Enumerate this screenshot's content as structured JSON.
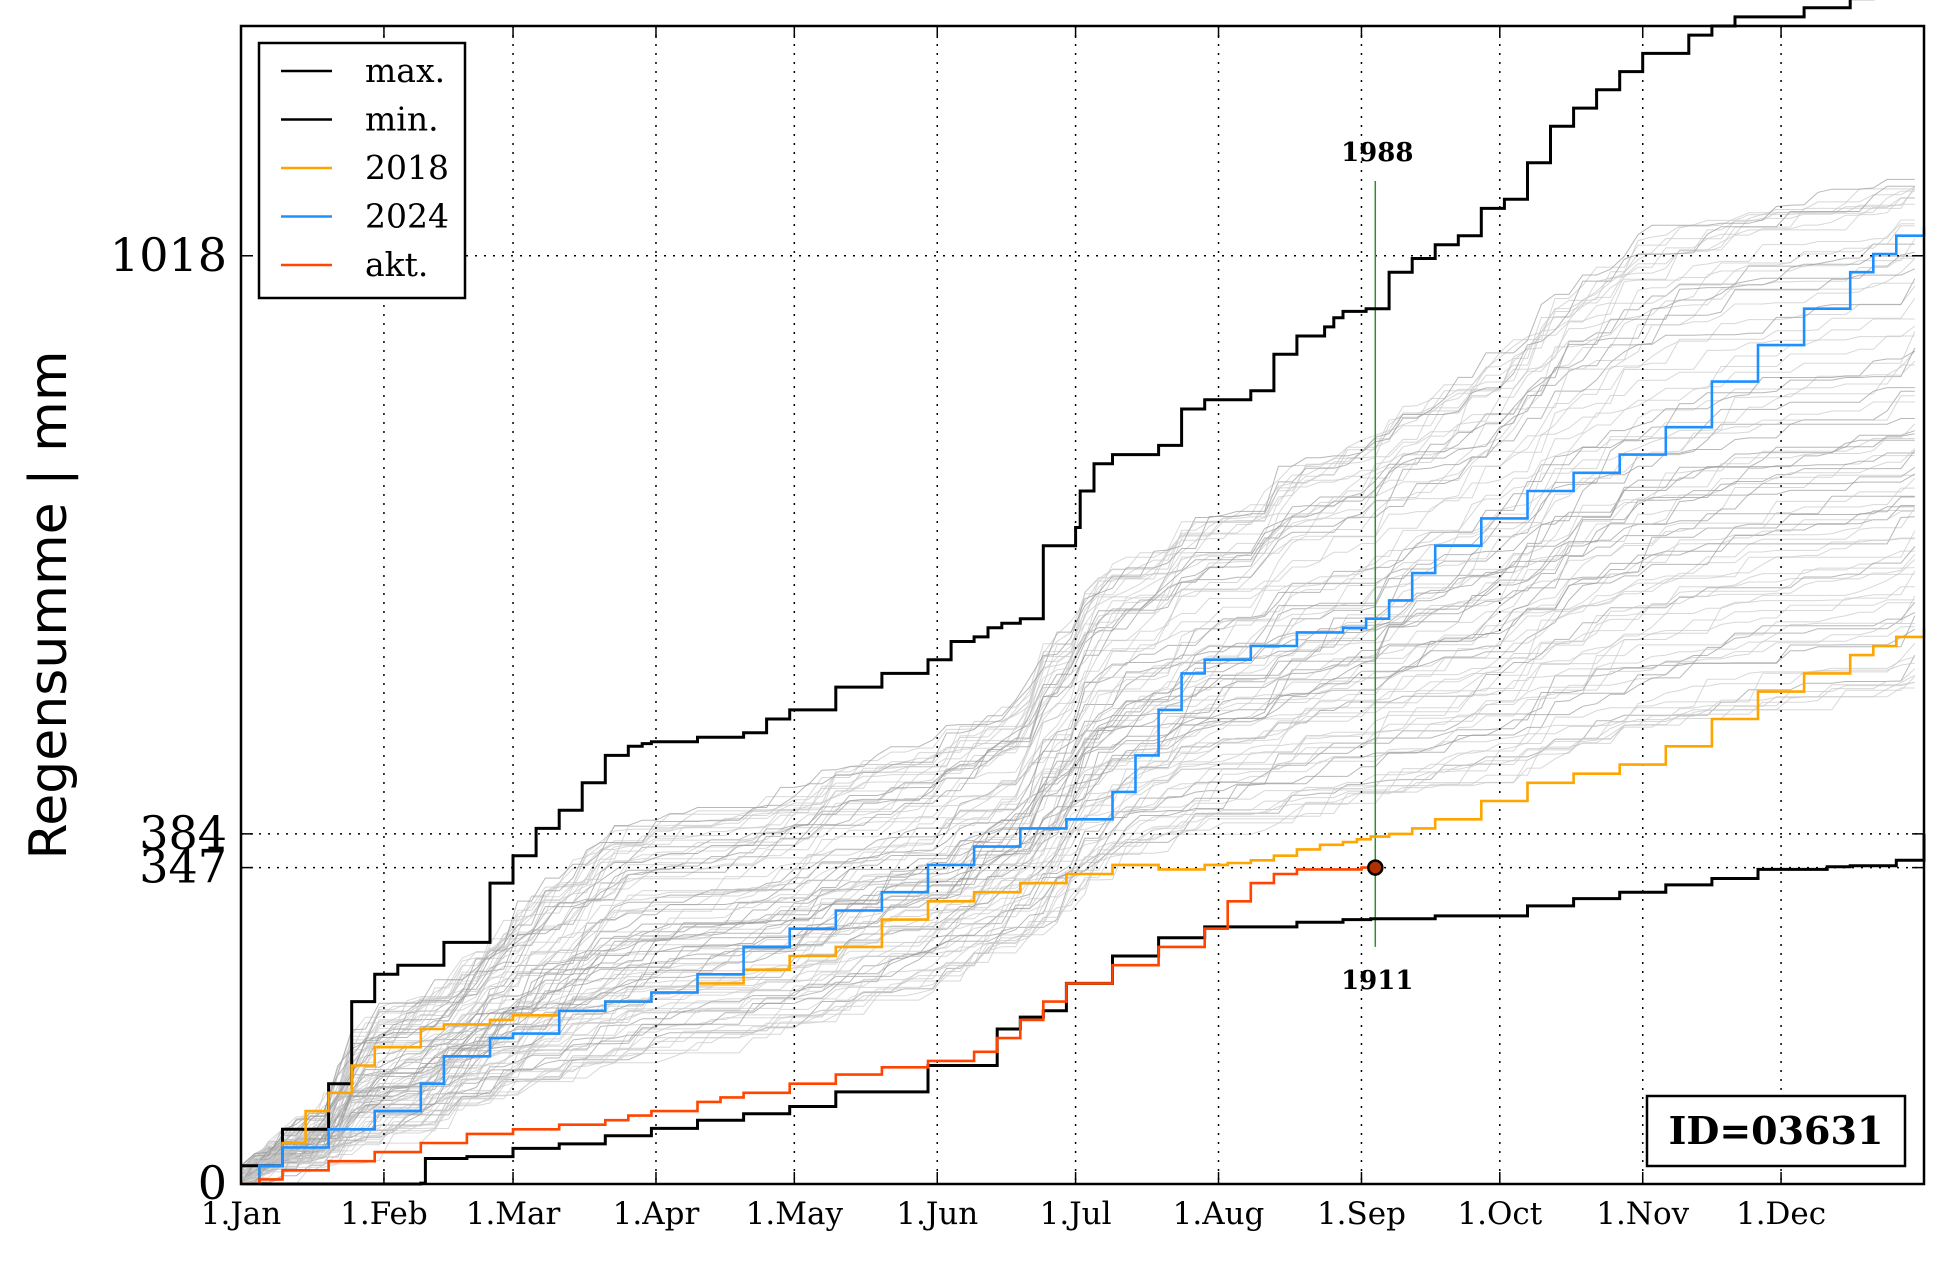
{
  "chart_data": {
    "type": "line",
    "title": "",
    "xlabel": "",
    "ylabel": "Regensumme | mm",
    "xlim": [
      1,
      366
    ],
    "ylim": [
      0,
      1270
    ],
    "x_ticks": [
      {
        "day": 1,
        "label": "1.Jan"
      },
      {
        "day": 32,
        "label": "1.Feb"
      },
      {
        "day": 60,
        "label": "1.Mar"
      },
      {
        "day": 91,
        "label": "1.Apr"
      },
      {
        "day": 121,
        "label": "1.May"
      },
      {
        "day": 152,
        "label": "1.Jun"
      },
      {
        "day": 182,
        "label": "1.Jul"
      },
      {
        "day": 213,
        "label": "1.Aug"
      },
      {
        "day": 244,
        "label": "1.Sep"
      },
      {
        "day": 274,
        "label": "1.Oct"
      },
      {
        "day": 305,
        "label": "1.Nov"
      },
      {
        "day": 335,
        "label": "1.Dec"
      }
    ],
    "y_ticks": [
      {
        "value": 0,
        "label": "0"
      },
      {
        "value": 347,
        "label": "347"
      },
      {
        "value": 384,
        "label": "384"
      },
      {
        "value": 1018,
        "label": "1018"
      }
    ],
    "grid": "dotted",
    "legend_position": "top-left",
    "series": [
      {
        "name": "max.",
        "color": "#000000",
        "x": [
          1,
          10,
          20,
          25,
          30,
          35,
          45,
          55,
          60,
          65,
          70,
          75,
          80,
          85,
          88,
          90,
          100,
          110,
          115,
          120,
          130,
          140,
          150,
          155,
          160,
          163,
          166,
          170,
          175,
          182,
          183,
          186,
          190,
          200,
          205,
          210,
          220,
          225,
          230,
          236,
          238,
          240,
          245,
          250,
          255,
          260,
          265,
          270,
          275,
          280,
          285,
          290,
          295,
          300,
          305,
          315,
          320,
          325,
          330,
          340,
          345,
          350,
          355,
          360,
          366
        ],
        "y": [
          20,
          60,
          110,
          200,
          230,
          240,
          265,
          330,
          360,
          390,
          410,
          440,
          470,
          480,
          483,
          485,
          490,
          495,
          510,
          520,
          545,
          560,
          575,
          595,
          600,
          610,
          615,
          620,
          700,
          720,
          760,
          790,
          800,
          810,
          850,
          860,
          870,
          910,
          930,
          940,
          950,
          957,
          960,
          1000,
          1015,
          1030,
          1040,
          1070,
          1080,
          1120,
          1160,
          1180,
          1200,
          1220,
          1240,
          1260,
          1270,
          1280,
          1280,
          1290,
          1290,
          1300,
          1310,
          1320,
          1325
        ]
      },
      {
        "name": "min.",
        "color": "#000000",
        "x": [
          1,
          30,
          40,
          41,
          45,
          50,
          60,
          70,
          80,
          90,
          100,
          110,
          120,
          130,
          150,
          165,
          170,
          175,
          180,
          190,
          200,
          210,
          210,
          212,
          216,
          220,
          230,
          240,
          246,
          260,
          280,
          290,
          300,
          310,
          320,
          330,
          340,
          345,
          350,
          355,
          360,
          366
        ],
        "y": [
          0,
          0,
          1,
          28,
          28,
          30,
          39,
          44,
          53,
          61,
          70,
          77,
          85,
          101,
          130,
          170,
          183,
          190,
          220,
          250,
          270,
          280,
          282,
          282,
          282,
          282,
          287,
          290,
          291,
          294,
          305,
          313,
          320,
          328,
          335,
          345,
          345,
          348,
          349,
          349,
          355,
          384
        ]
      },
      {
        "name": "2018",
        "color": "#FFA500",
        "x": [
          1,
          5,
          10,
          15,
          20,
          25,
          30,
          40,
          45,
          55,
          60,
          70,
          80,
          90,
          100,
          110,
          120,
          130,
          140,
          150,
          160,
          170,
          180,
          190,
          200,
          210,
          215,
          220,
          225,
          230,
          235,
          240,
          243,
          246,
          250,
          255,
          260,
          270,
          280,
          290,
          300,
          310,
          320,
          330,
          340,
          350,
          355,
          360,
          366
        ],
        "y": [
          0,
          20,
          45,
          80,
          100,
          130,
          150,
          170,
          175,
          180,
          185,
          190,
          200,
          210,
          220,
          235,
          250,
          260,
          290,
          310,
          320,
          330,
          340,
          350,
          345,
          350,
          352,
          355,
          360,
          367,
          372,
          375,
          378,
          381,
          384,
          390,
          400,
          420,
          440,
          450,
          460,
          480,
          510,
          540,
          560,
          580,
          590,
          600,
          610
        ]
      },
      {
        "name": "2024",
        "color": "#1E90FF",
        "x": [
          1,
          5,
          10,
          20,
          30,
          40,
          45,
          55,
          60,
          70,
          80,
          90,
          100,
          110,
          120,
          130,
          140,
          150,
          160,
          170,
          180,
          190,
          195,
          200,
          205,
          210,
          220,
          230,
          240,
          245,
          250,
          255,
          260,
          270,
          280,
          290,
          300,
          310,
          320,
          330,
          340,
          350,
          355,
          360,
          366
        ],
        "y": [
          0,
          20,
          40,
          60,
          80,
          110,
          140,
          160,
          165,
          190,
          200,
          210,
          230,
          260,
          280,
          300,
          320,
          350,
          370,
          390,
          400,
          430,
          470,
          520,
          560,
          575,
          590,
          605,
          610,
          620,
          640,
          670,
          700,
          730,
          760,
          780,
          800,
          830,
          880,
          920,
          960,
          1000,
          1020,
          1040,
          1050
        ]
      },
      {
        "name": "akt.",
        "color": "#FF4500",
        "x": [
          1,
          5,
          10,
          20,
          30,
          40,
          50,
          60,
          70,
          80,
          85,
          90,
          100,
          105,
          110,
          120,
          130,
          140,
          150,
          160,
          165,
          170,
          175,
          180,
          190,
          200,
          210,
          215,
          220,
          225,
          230,
          235,
          240,
          244,
          246
        ],
        "y": [
          0,
          5,
          15,
          25,
          35,
          45,
          55,
          60,
          65,
          70,
          75,
          80,
          90,
          95,
          100,
          110,
          120,
          128,
          135,
          145,
          160,
          180,
          200,
          220,
          240,
          260,
          280,
          310,
          330,
          340,
          345,
          345,
          345,
          347,
          347
        ]
      }
    ],
    "reference_lines": {
      "horizontal": [
        1018,
        384,
        347
      ],
      "vertical_day": 247
    },
    "current_point": {
      "day": 247,
      "value": 347
    },
    "annotations": {
      "max_year": {
        "label": "1988",
        "day": 247,
        "value": 1100
      },
      "min_year": {
        "label": "1911",
        "day": 247,
        "value": 260
      }
    },
    "station_id": "ID=03631"
  }
}
